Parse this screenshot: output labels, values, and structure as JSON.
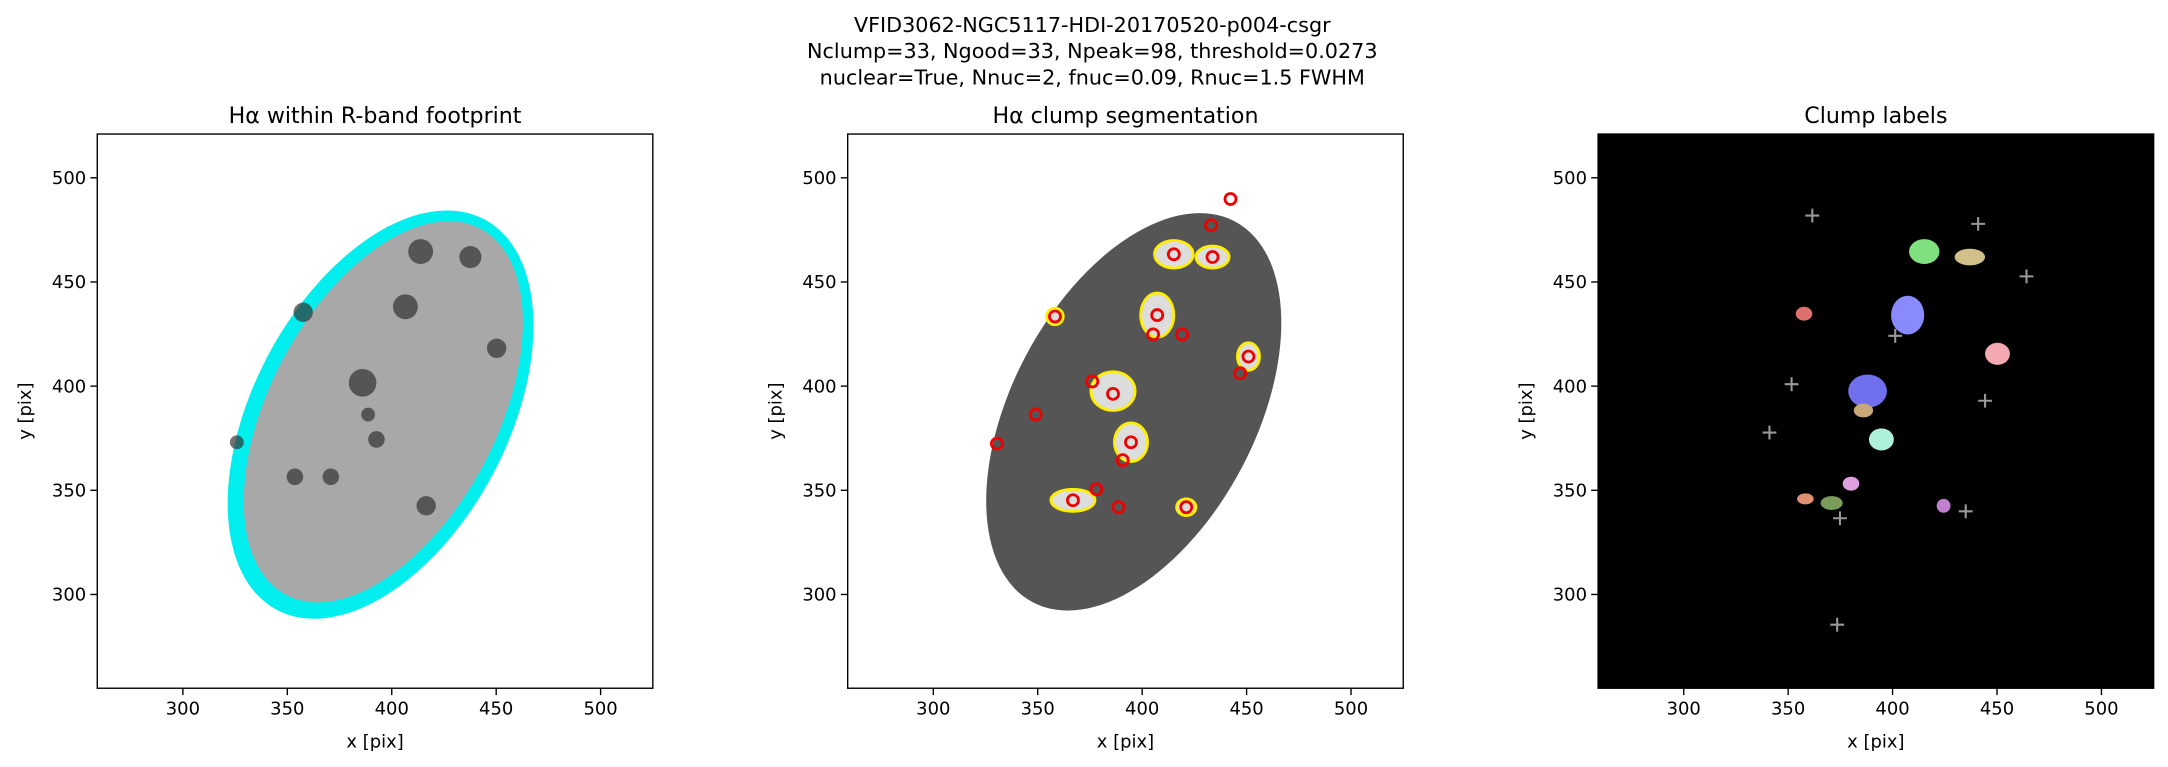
{
  "figure_title": [
    "VFID3062-NGC5117-HDI-20170520-p004-csgr",
    "Nclump=33, Ngood=33, Npeak=98, threshold=0.0273",
    "nuclear=True, Nnuc=2, fnuc=0.09, Rnuc=1.5 FWHM"
  ],
  "chart_data": [
    {
      "type": "image",
      "title": "Hα within R-band footprint",
      "x_label": "x [pix]",
      "y_label": "y [pix]",
      "xlim": [
        259,
        525
      ],
      "ylim": [
        255,
        521
      ],
      "xticks": [
        300,
        350,
        400,
        450,
        500
      ],
      "yticks": [
        300,
        350,
        400,
        450,
        500
      ],
      "background": "#ffffff"
    },
    {
      "type": "image",
      "title": "Hα clump segmentation",
      "x_label": "x [pix]",
      "y_label": "y [pix]",
      "xlim": [
        259,
        525
      ],
      "ylim": [
        255,
        521
      ],
      "xticks": [
        300,
        350,
        400,
        450,
        500
      ],
      "yticks": [
        300,
        350,
        400,
        450,
        500
      ],
      "background": "#ffffff"
    },
    {
      "type": "image",
      "title": "Clump labels",
      "x_label": "x [pix]",
      "y_label": "y [pix]",
      "xlim": [
        259,
        525
      ],
      "ylim": [
        255,
        521
      ],
      "xticks": [
        300,
        350,
        400,
        450,
        500
      ],
      "yticks": [
        300,
        350,
        400,
        450,
        500
      ],
      "background": "#000000"
    }
  ]
}
